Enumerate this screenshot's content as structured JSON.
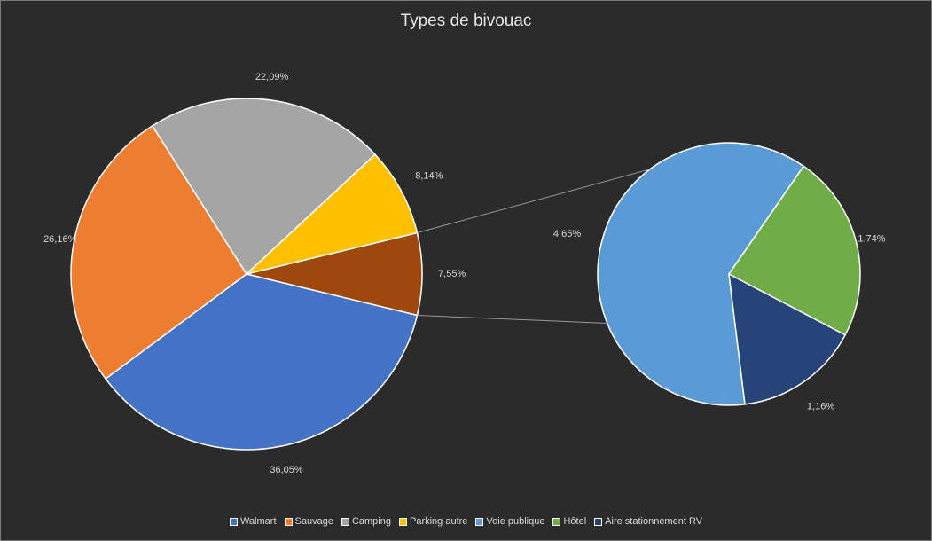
{
  "chart_data": {
    "type": "pie",
    "subtype": "pie-of-pie",
    "title": "Types de bivouac",
    "categories": [
      "Walmart",
      "Sauvage",
      "Camping",
      "Parking autre",
      "Voie publique",
      "Hôtel",
      "Aire stationnement RV"
    ],
    "values": [
      36.05,
      26.16,
      22.09,
      8.14,
      4.65,
      1.74,
      1.16
    ],
    "value_labels": [
      "36,05%",
      "26,16%",
      "22,09%",
      "8,14%",
      "4,65%",
      "1,74%",
      "1,16%"
    ],
    "colors": [
      "#4472c4",
      "#ed7d31",
      "#a5a5a5",
      "#ffc000",
      "#5b9bd5",
      "#70ad47",
      "#264478"
    ],
    "main_pie": {
      "slices": [
        {
          "category": "Walmart",
          "value": 36.05,
          "label": "36,05%",
          "color": "#4472c4"
        },
        {
          "category": "Sauvage",
          "value": 26.16,
          "label": "26,16%",
          "color": "#ed7d31"
        },
        {
          "category": "Camping",
          "value": 22.09,
          "label": "22,09%",
          "color": "#a5a5a5"
        },
        {
          "category": "Parking autre",
          "value": 8.14,
          "label": "8,14%",
          "color": "#ffc000"
        },
        {
          "category": null,
          "value": 7.55,
          "label": "7,55%",
          "color": "#9e480e"
        }
      ]
    },
    "secondary_pie": {
      "slices": [
        {
          "category": "Voie publique",
          "value": 4.65,
          "label": "4,65%",
          "color": "#5b9bd5"
        },
        {
          "category": "Hôtel",
          "value": 1.74,
          "label": "1,74%",
          "color": "#70ad47"
        },
        {
          "category": "Aire stationnement RV",
          "value": 1.16,
          "label": "1,16%",
          "color": "#264478"
        }
      ]
    },
    "legend_position": "bottom"
  }
}
